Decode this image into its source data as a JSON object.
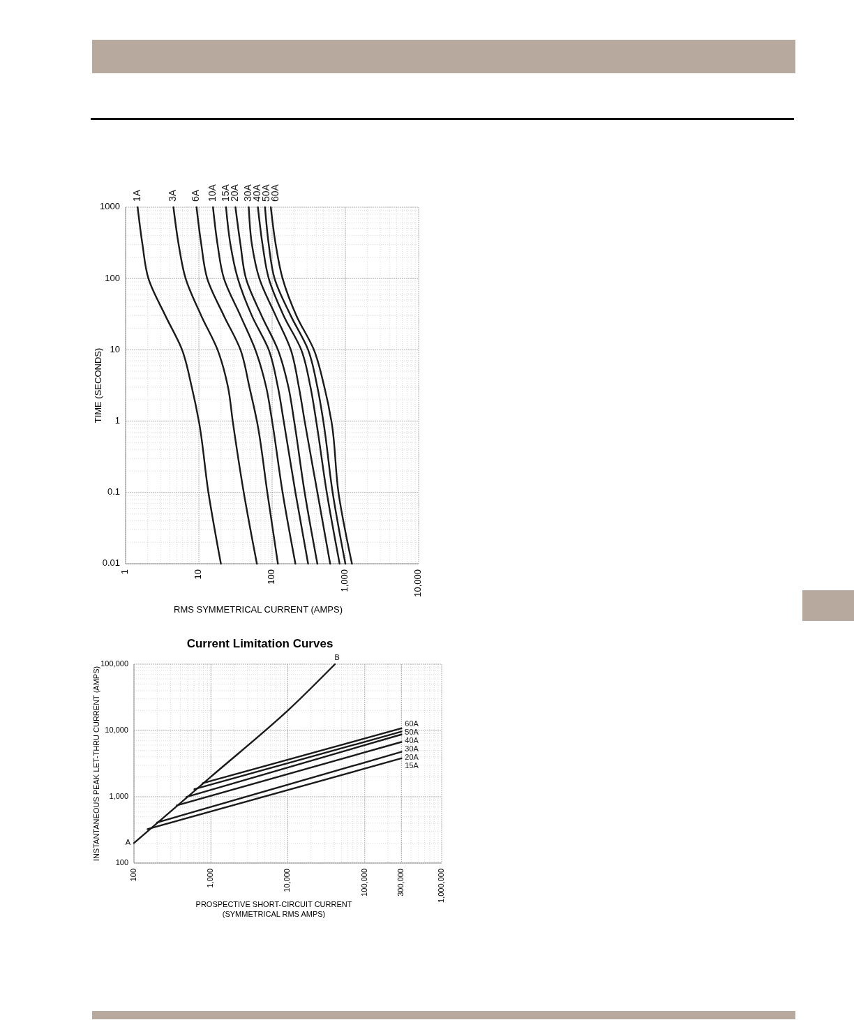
{
  "chart_data": [
    {
      "type": "line",
      "xlabel": "RMS SYMMETRICAL CURRENT (AMPS)",
      "ylabel": "TIME (SECONDS)",
      "log": "xy",
      "grid": true,
      "marker": "none",
      "line_style": "solid",
      "xlim": [
        1,
        10000
      ],
      "ylim": [
        0.01,
        1000
      ],
      "xticks": [
        1,
        10,
        100,
        {
          "value": 1000,
          "label": "1,000"
        },
        {
          "value": 10000,
          "label": "10,000"
        }
      ],
      "yticks": [
        0.01,
        0.1,
        1,
        10,
        100,
        1000
      ],
      "series": [
        {
          "name": "1A",
          "color": "#1a1a1a",
          "x": [
            1.46,
            1.7,
            2.05,
            3.5,
            5.9,
            8,
            10,
            13.5,
            20
          ],
          "values": [
            1000,
            300,
            100,
            30,
            10,
            3,
            1,
            0.1,
            0.01
          ]
        },
        {
          "name": "3A",
          "color": "#1a1a1a",
          "x": [
            4.5,
            5.3,
            6.6,
            10.8,
            18,
            25,
            29,
            41,
            62
          ],
          "values": [
            1000,
            300,
            100,
            30,
            10,
            3,
            1,
            0.1,
            0.01
          ]
        },
        {
          "name": "6A",
          "color": "#1a1a1a",
          "x": [
            9.3,
            10.8,
            13,
            22,
            37,
            49,
            62,
            86,
            120
          ],
          "values": [
            1000,
            300,
            100,
            30,
            10,
            3,
            1,
            0.1,
            0.01
          ]
        },
        {
          "name": "10A",
          "color": "#1a1a1a",
          "x": [
            15.6,
            18,
            22,
            37,
            59,
            83,
            100,
            139,
            208
          ],
          "values": [
            1000,
            300,
            100,
            30,
            10,
            3,
            1,
            0.1,
            0.01
          ]
        },
        {
          "name": "15A",
          "color": "#1a1a1a",
          "x": [
            23.5,
            27,
            34,
            53,
            90,
            120,
            144,
            208,
            310
          ],
          "values": [
            1000,
            300,
            100,
            30,
            10,
            3,
            1,
            0.1,
            0.01
          ]
        },
        {
          "name": "20A",
          "color": "#1a1a1a",
          "x": [
            31.6,
            37,
            44,
            72,
            120,
            167,
            200,
            278,
            415
          ],
          "values": [
            1000,
            300,
            100,
            30,
            10,
            3,
            1,
            0.1,
            0.01
          ]
        },
        {
          "name": "30A",
          "color": "#1a1a1a",
          "x": [
            48,
            53,
            67,
            112,
            180,
            232,
            278,
            415,
            620
          ],
          "values": [
            1000,
            300,
            100,
            30,
            10,
            3,
            1,
            0.1,
            0.01
          ]
        },
        {
          "name": "40A",
          "color": "#1a1a1a",
          "x": [
            64,
            74,
            90,
            144,
            250,
            334,
            400,
            557,
            835
          ],
          "values": [
            1000,
            300,
            100,
            30,
            10,
            3,
            1,
            0.1,
            0.01
          ]
        },
        {
          "name": "50A",
          "color": "#1a1a1a",
          "x": [
            80,
            90,
            108,
            180,
            310,
            415,
            500,
            670,
            1000
          ],
          "values": [
            1000,
            300,
            100,
            30,
            10,
            3,
            1,
            0.1,
            0.01
          ]
        },
        {
          "name": "60A",
          "color": "#1a1a1a",
          "x": [
            96,
            112,
            139,
            215,
            372,
            517,
            645,
            805,
            1230
          ],
          "values": [
            1000,
            300,
            100,
            30,
            10,
            3,
            1,
            0.1,
            0.01
          ]
        }
      ]
    },
    {
      "type": "line",
      "title": "Current Limitation Curves",
      "xlabel": "PROSPECTIVE SHORT-CIRCUIT CURRENT\n(SYMMETRICAL RMS AMPS)",
      "ylabel": "INSTANTANEOUS PEAK LET-THRU CURRENT (AMPS)",
      "log": "xy",
      "grid": true,
      "marker": "none",
      "line_style": "solid",
      "xlim": [
        100,
        1000000
      ],
      "ylim": [
        100,
        100000
      ],
      "xticks": [
        100,
        {
          "value": 1000,
          "label": "1,000"
        },
        {
          "value": 10000,
          "label": "10,000"
        },
        {
          "value": 100000,
          "label": "100,000"
        },
        {
          "value": 300000,
          "label": "300,000"
        },
        {
          "value": 1000000,
          "label": "1,000,000"
        }
      ],
      "yticks": [
        100,
        {
          "value": 1000,
          "label": "1,000"
        },
        {
          "value": 10000,
          "label": "10,000"
        },
        {
          "value": 100000,
          "label": "100,000"
        }
      ],
      "annotations": [
        {
          "text": "A",
          "x": 100,
          "y": 200
        },
        {
          "text": "B",
          "x": 41000,
          "y": 100000
        }
      ],
      "series": [
        {
          "color": "#1a1a1a",
          "x": [
            100,
            1000,
            10000,
            41000
          ],
          "values": [
            200,
            2000,
            20000,
            100000
          ]
        },
        {
          "name": "60A",
          "color": "#1a1a1a",
          "x": [
            780,
            300000
          ],
          "values": [
            1600,
            10800
          ]
        },
        {
          "name": "50A",
          "color": "#1a1a1a",
          "x": [
            610,
            300000
          ],
          "values": [
            1300,
            9600
          ]
        },
        {
          "name": "40A",
          "color": "#1a1a1a",
          "x": [
            480,
            300000
          ],
          "values": [
            990,
            8700
          ]
        },
        {
          "name": "30A",
          "color": "#1a1a1a",
          "x": [
            360,
            300000
          ],
          "values": [
            740,
            6700
          ]
        },
        {
          "name": "20A",
          "color": "#1a1a1a",
          "x": [
            200,
            300000
          ],
          "values": [
            410,
            4750
          ]
        },
        {
          "name": "15A",
          "color": "#1a1a1a",
          "x": [
            150,
            300000
          ],
          "values": [
            325,
            3800
          ]
        }
      ]
    }
  ]
}
